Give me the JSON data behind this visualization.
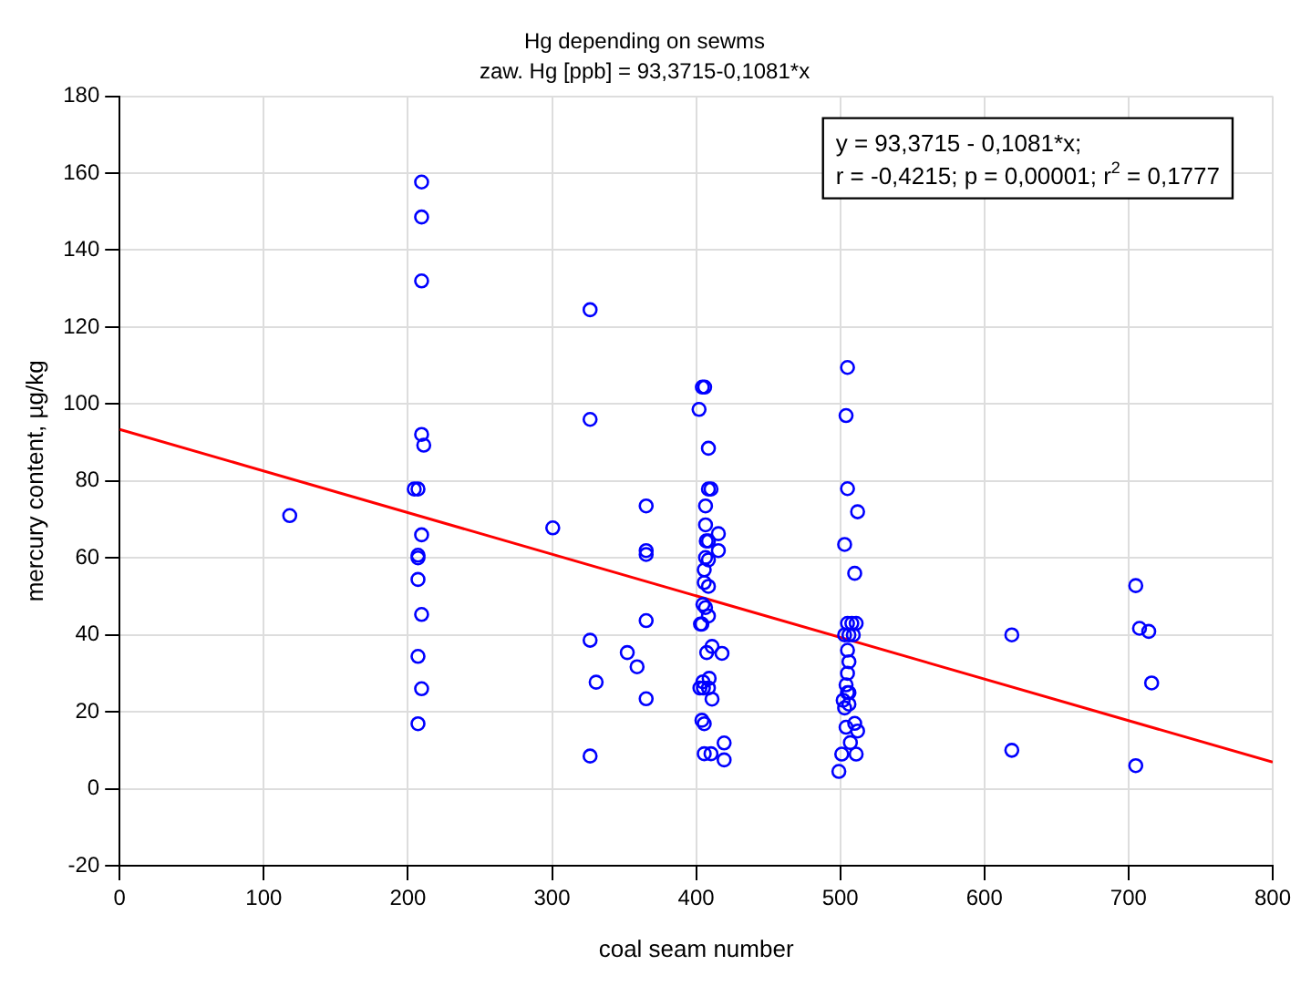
{
  "chart_data": {
    "type": "scatter",
    "title": "Hg depending on sewms",
    "subtitle": "zaw. Hg [ppb] = 93,3715-0,1081*x",
    "xlabel": "coal seam number",
    "ylabel": "mercury content, µg/kg",
    "annotations": [
      "y = 93,3715 - 0,1081*x;",
      "r = -0,4215; p = 0,00001; r$^{2}$ = 0,1777"
    ],
    "xlim": [
      0,
      800
    ],
    "xticks": [
      0,
      100,
      200,
      300,
      400,
      500,
      600,
      700,
      800
    ],
    "ylim": [
      -20,
      180
    ],
    "yticks": [
      -20,
      0,
      20,
      40,
      60,
      80,
      100,
      120,
      140,
      160,
      180
    ],
    "grid": true,
    "legend": false,
    "marker": "circle",
    "series": [
      {
        "type": "scatter",
        "color": "#0000ff",
        "x": [
          118,
          209.5,
          209.5,
          209.5,
          209.5,
          211,
          204.4,
          207,
          209.5,
          207,
          207,
          207,
          209.5,
          207,
          209.5,
          207,
          300.5,
          326.4,
          404.3,
          405.9,
          402,
          326.4,
          408.5,
          408.5,
          410.3,
          365.3,
          406.5,
          406.5,
          415.4,
          407,
          408.5,
          415.4,
          365.3,
          365.3,
          406.5,
          408.5,
          405.6,
          405.6,
          408.5,
          404.7,
          406.5,
          408.5,
          403,
          404,
          365.3,
          326.4,
          352.2,
          359,
          411,
          407.3,
          417.9,
          330.6,
          404.7,
          409,
          402.6,
          405,
          408.5,
          411,
          365.3,
          404,
          405.6,
          419.4,
          326.4,
          405.6,
          410.3,
          419.4,
          505,
          504,
          505,
          512,
          503,
          510,
          508,
          505,
          511,
          503,
          506,
          509,
          505,
          506,
          505,
          504,
          506,
          505,
          502,
          503,
          506,
          510,
          504,
          512,
          507,
          511,
          501,
          499,
          619,
          619,
          705,
          707.6,
          714,
          716,
          705
        ],
        "values": [
          71,
          157.7,
          148.6,
          132,
          92.1,
          89.3,
          77.9,
          77.9,
          66,
          60.7,
          60,
          54.4,
          45.3,
          34.4,
          26,
          16.9,
          67.8,
          124.5,
          104.4,
          104.4,
          98.6,
          96,
          88.5,
          77.9,
          77.9,
          73.5,
          73.5,
          68.6,
          66.3,
          64.4,
          64.4,
          61.9,
          61.9,
          60.9,
          60.1,
          59.5,
          56.9,
          53.6,
          52.6,
          47.9,
          47.1,
          44.9,
          42.8,
          42.8,
          43.7,
          38.6,
          35.4,
          31.7,
          37,
          35.4,
          35.2,
          27.7,
          27.8,
          28.7,
          26.2,
          26.2,
          26.2,
          23.3,
          23.4,
          17.8,
          16.9,
          11.9,
          8.5,
          9.1,
          9.1,
          7.5,
          109.5,
          97,
          78,
          72,
          63.5,
          56,
          43,
          43,
          43,
          40,
          40,
          40,
          36,
          33,
          30,
          27,
          25,
          25,
          23,
          21,
          22,
          17,
          16,
          15,
          12,
          9,
          9,
          4.5,
          40,
          10,
          52.8,
          41.7,
          40.9,
          27.5,
          6
        ]
      },
      {
        "type": "line",
        "color": "#ff0000",
        "marker": "none",
        "x": [
          0,
          800
        ],
        "values": [
          93.4,
          6.9
        ]
      }
    ]
  }
}
